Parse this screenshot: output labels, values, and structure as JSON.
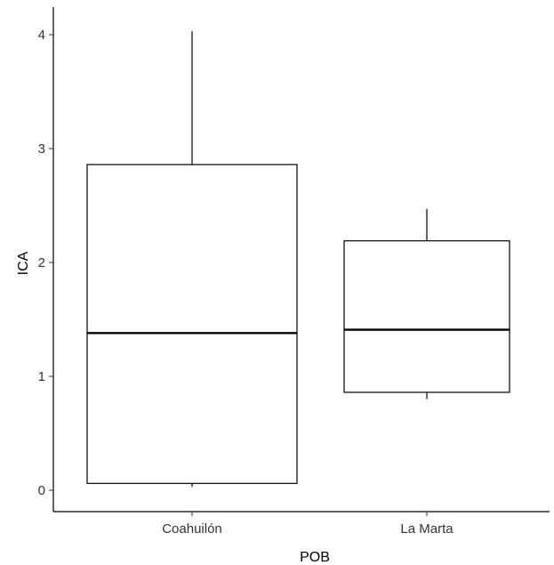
{
  "chart_data": {
    "type": "boxplot",
    "xlabel": "POB",
    "ylabel": "ICA",
    "ylim": [
      -0.2,
      4.25
    ],
    "yticks": [
      0,
      1,
      2,
      3,
      4
    ],
    "categories": [
      "Coahuilón",
      "La Marta"
    ],
    "boxes": [
      {
        "category": "Coahuilón",
        "whisker_low": 0.03,
        "q1": 0.06,
        "median": 1.38,
        "q3": 2.86,
        "whisker_high": 4.03
      },
      {
        "category": "La Marta",
        "whisker_low": 0.8,
        "q1": 0.86,
        "median": 1.41,
        "q3": 2.19,
        "whisker_high": 2.47
      }
    ],
    "grid": false,
    "legend": "none"
  }
}
